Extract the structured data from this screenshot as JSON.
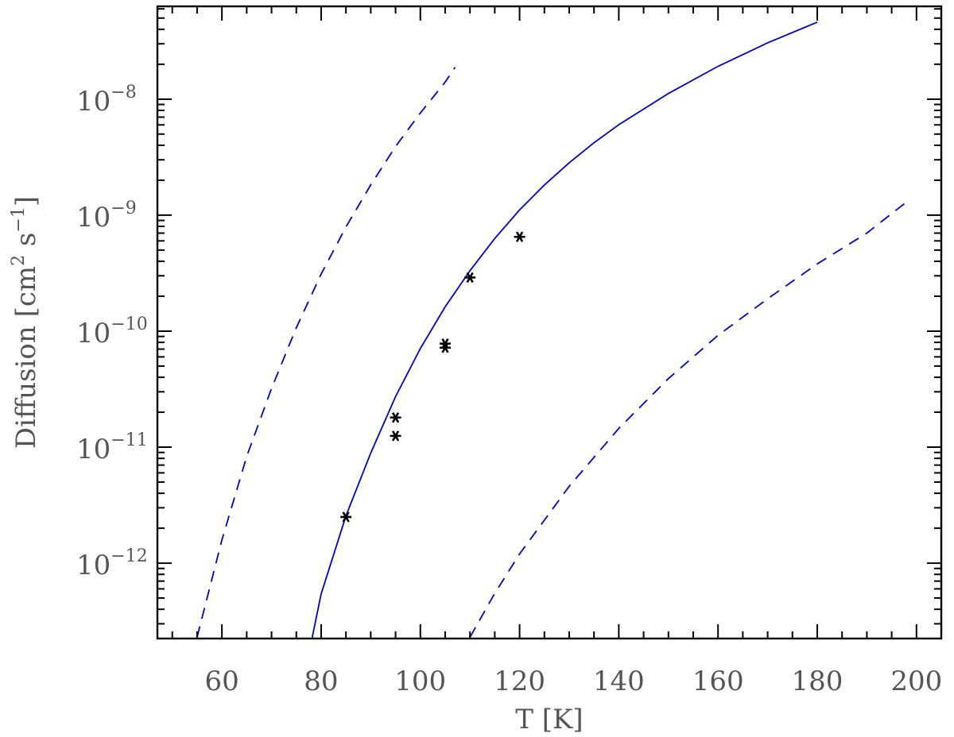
{
  "chart_data": {
    "type": "scatter",
    "xlabel": "T [K]",
    "ylabel": {
      "main": "Diffusion [cm",
      "sq": "2",
      "mid": " s",
      "inv": "−1",
      "close": "]"
    },
    "xlim": [
      47,
      205
    ],
    "ylog": true,
    "ylim_exp": [
      -12.65,
      -7.2
    ],
    "x_ticks": [
      60,
      80,
      100,
      120,
      140,
      160,
      180,
      200
    ],
    "x_minor_step": 5,
    "y_ticks": [
      {
        "exp": -12,
        "base": "10",
        "sup": "−12"
      },
      {
        "exp": -11,
        "base": "10",
        "sup": "−11"
      },
      {
        "exp": -10,
        "base": "10",
        "sup": "−10"
      },
      {
        "exp": -9,
        "base": "10",
        "sup": "−9"
      },
      {
        "exp": -8,
        "base": "10",
        "sup": "−8"
      }
    ],
    "marker_color": "#000000",
    "line_color": "#0000cc",
    "points": [
      {
        "x": 85,
        "y": 2.5e-12
      },
      {
        "x": 95,
        "y": 1.8e-11
      },
      {
        "x": 95,
        "y": 1.25e-11
      },
      {
        "x": 105,
        "y": 7.8e-11
      },
      {
        "x": 105,
        "y": 7.2e-11
      },
      {
        "x": 110,
        "y": 2.9e-10
      },
      {
        "x": 120,
        "y": 6.5e-10
      }
    ],
    "curves": [
      {
        "style": "solid",
        "points": [
          [
            78.2,
            2.28e-13
          ],
          [
            80,
            5.4e-13
          ],
          [
            85,
            2.55e-12
          ],
          [
            90,
            8.87e-12
          ],
          [
            95,
            2.72e-11
          ],
          [
            100,
            7.07e-11
          ],
          [
            105,
            1.62e-10
          ],
          [
            110,
            3.32e-10
          ],
          [
            115,
            6.3e-10
          ],
          [
            120,
            1.11e-09
          ],
          [
            125,
            1.82e-09
          ],
          [
            130,
            2.83e-09
          ],
          [
            135,
            4.21e-09
          ],
          [
            140,
            6.02e-09
          ],
          [
            150,
            1.12e-08
          ],
          [
            160,
            1.92e-08
          ],
          [
            170,
            3.06e-08
          ],
          [
            180,
            4.61e-08
          ]
        ]
      },
      {
        "style": "dashed",
        "points": [
          [
            55,
            2.3e-13
          ],
          [
            60,
            1.58e-12
          ],
          [
            65,
            8.3e-12
          ],
          [
            70,
            3.2e-11
          ],
          [
            75,
            1.07e-10
          ],
          [
            80,
            3.1e-10
          ],
          [
            85,
            7.9e-10
          ],
          [
            90,
            1.82e-09
          ],
          [
            95,
            3.9e-09
          ],
          [
            100,
            7.6e-09
          ],
          [
            105,
            1.4e-08
          ],
          [
            107,
            1.88e-08
          ]
        ]
      },
      {
        "style": "dashed",
        "points": [
          [
            110,
            2.3e-13
          ],
          [
            115,
            5.5e-13
          ],
          [
            120,
            1.2e-12
          ],
          [
            130,
            4.6e-12
          ],
          [
            140,
            1.45e-11
          ],
          [
            150,
            3.9e-11
          ],
          [
            160,
            9.2e-11
          ],
          [
            170,
            1.9e-10
          ],
          [
            180,
            3.8e-10
          ],
          [
            190,
            7e-10
          ],
          [
            198,
            1.3e-09
          ]
        ]
      }
    ]
  }
}
